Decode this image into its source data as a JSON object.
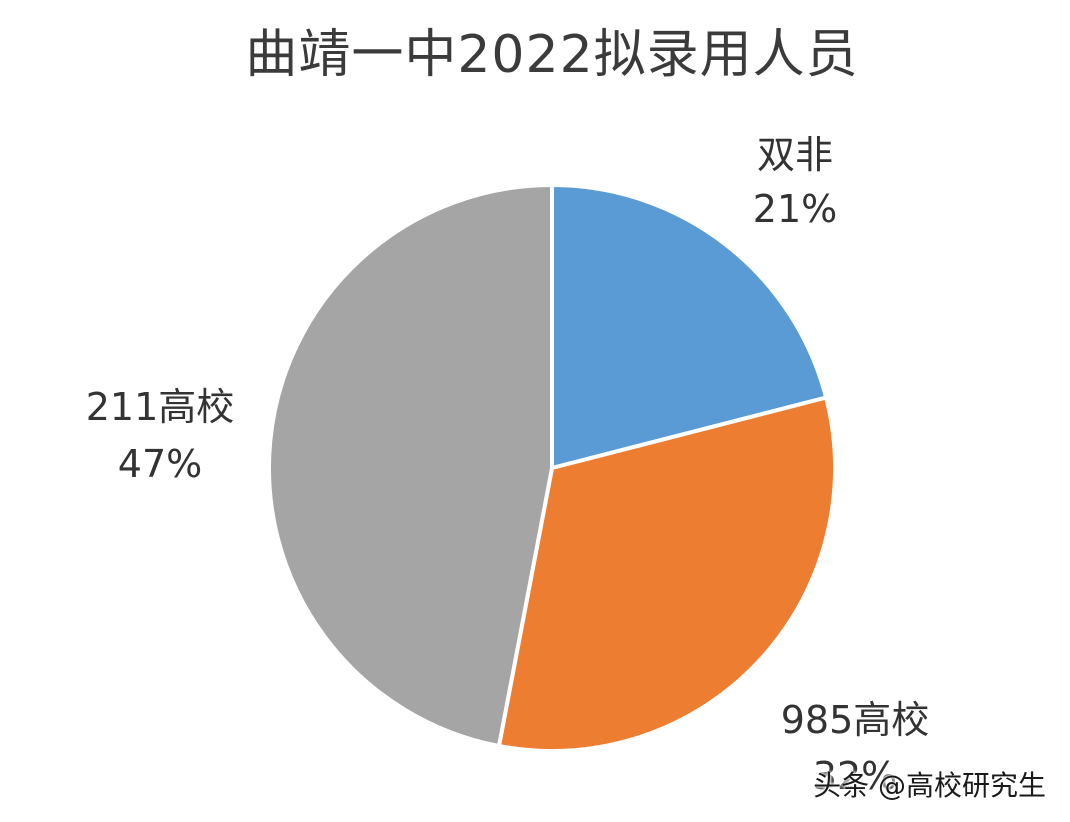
{
  "chart_data": {
    "type": "pie",
    "title": "曲靖一中2022拟录用人员",
    "slices": [
      {
        "name": "双非",
        "percent_label": "21%",
        "value": 21,
        "color": "#5B9BD5"
      },
      {
        "name": "985高校",
        "percent_label": "32%",
        "value": 32,
        "color": "#ED7D31"
      },
      {
        "name": "211高校",
        "percent_label": "47%",
        "value": 47,
        "color": "#A5A5A5"
      }
    ],
    "start": "12 o'clock",
    "direction": "clockwise",
    "legend": "none",
    "grid": false
  },
  "watermark": {
    "text": "头条 @高校研究生"
  }
}
